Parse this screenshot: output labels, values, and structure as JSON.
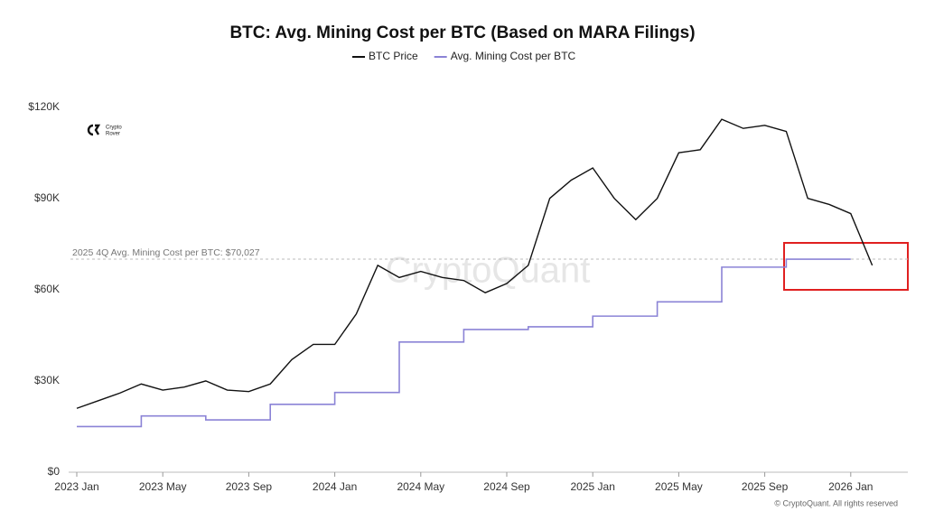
{
  "chart_data": {
    "type": "line",
    "title": "BTC: Avg. Mining Cost per BTC (Based on MARA Filings)",
    "x": [
      "2023-01",
      "2023-02",
      "2023-03",
      "2023-04",
      "2023-05",
      "2023-06",
      "2023-07",
      "2023-08",
      "2023-09",
      "2023-10",
      "2023-11",
      "2023-12",
      "2024-01",
      "2024-02",
      "2024-03",
      "2024-04",
      "2024-05",
      "2024-06",
      "2024-07",
      "2024-08",
      "2024-09",
      "2024-10",
      "2024-11",
      "2024-12",
      "2025-01",
      "2025-02",
      "2025-03",
      "2025-04",
      "2025-05",
      "2025-06",
      "2025-07",
      "2025-08",
      "2025-09",
      "2025-10",
      "2025-11",
      "2025-12",
      "2026-01",
      "2026-02"
    ],
    "series": [
      {
        "name": "BTC Price",
        "color": "#111111",
        "step": false,
        "values": [
          21000,
          23500,
          26000,
          29000,
          27000,
          28000,
          30000,
          27000,
          26500,
          29000,
          37000,
          42000,
          42000,
          52000,
          68000,
          64000,
          66000,
          64000,
          63000,
          59000,
          62000,
          68000,
          90000,
          96000,
          100000,
          90000,
          83000,
          90000,
          105000,
          106000,
          116000,
          113000,
          114000,
          112000,
          90000,
          88000,
          85000,
          68000
        ]
      },
      {
        "name": "Avg. Mining Cost per BTC",
        "color": "#8b83d6",
        "step": true,
        "values": [
          15000,
          15000,
          15000,
          18500,
          18500,
          18500,
          17200,
          17200,
          17200,
          22300,
          22300,
          22300,
          26200,
          26200,
          26200,
          42800,
          42800,
          42800,
          46900,
          46900,
          46900,
          47800,
          47800,
          47800,
          51300,
          51300,
          51300,
          56000,
          56000,
          56000,
          67400,
          67400,
          67400,
          70027,
          70027,
          70027,
          null,
          null
        ]
      }
    ],
    "ylim": [
      0,
      126000
    ],
    "yticks": [
      {
        "value": 0,
        "label": "$0"
      },
      {
        "value": 30000,
        "label": "$30K"
      },
      {
        "value": 60000,
        "label": "$60K"
      },
      {
        "value": 90000,
        "label": "$90K"
      },
      {
        "value": 120000,
        "label": "$120K"
      }
    ],
    "xticks": [
      {
        "value": "2023-01",
        "label": "2023 Jan"
      },
      {
        "value": "2023-05",
        "label": "2023 May"
      },
      {
        "value": "2023-09",
        "label": "2023 Sep"
      },
      {
        "value": "2024-01",
        "label": "2024 Jan"
      },
      {
        "value": "2024-05",
        "label": "2024 May"
      },
      {
        "value": "2024-09",
        "label": "2024 Sep"
      },
      {
        "value": "2025-01",
        "label": "2025 Jan"
      },
      {
        "value": "2025-05",
        "label": "2025 May"
      },
      {
        "value": "2025-09",
        "label": "2025 Sep"
      },
      {
        "value": "2026-01",
        "label": "2026 Jan"
      }
    ],
    "annotation": {
      "text": "2025 4Q Avg. Mining Cost per BTC: $70,027",
      "value": 70027
    },
    "watermark": "CryptoQuant",
    "logo": [
      "Crypto",
      "Rover"
    ],
    "copyright": "© CryptoQuant. All rights reserved"
  }
}
